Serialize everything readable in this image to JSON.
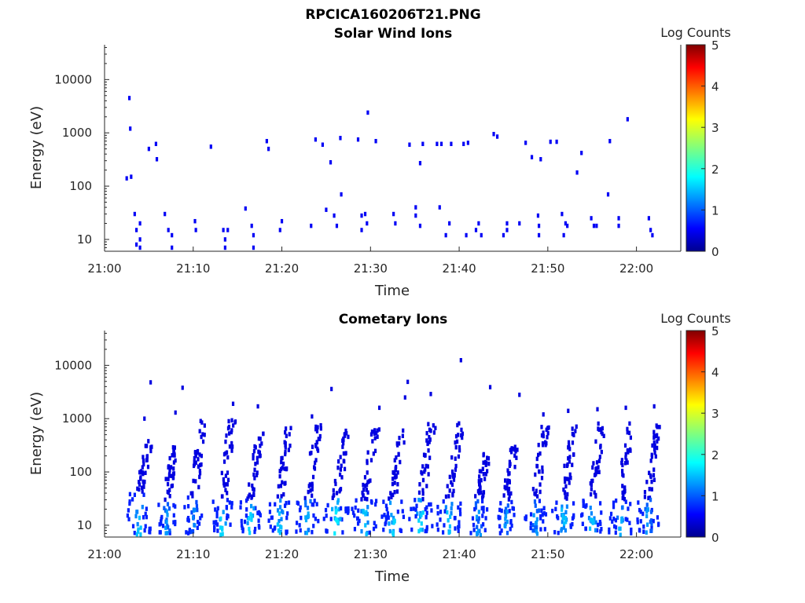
{
  "figure_title": "RPCICA160206T21.PNG",
  "chart_data": [
    {
      "type": "heatmap",
      "title": "Solar Wind Ions",
      "xlabel": "Time",
      "ylabel": "Energy (eV)",
      "y_scale": "log",
      "ylim": [
        6,
        45000
      ],
      "xlim": [
        "21:00",
        "22:05"
      ],
      "x_ticks": [
        "21:00",
        "21:10",
        "21:20",
        "21:30",
        "21:40",
        "21:50",
        "22:00"
      ],
      "y_ticks": [
        "10",
        "100",
        "1000",
        "10000"
      ],
      "colorbar": {
        "label": "Log Counts",
        "min": 0,
        "max": 5,
        "ticks": [
          "0",
          "1",
          "2",
          "3",
          "4",
          "5"
        ]
      },
      "cells": [
        {
          "t": 2.5,
          "e": 140,
          "v": 0.5
        },
        {
          "t": 2.8,
          "e": 4500,
          "v": 0.5
        },
        {
          "t": 2.9,
          "e": 1200,
          "v": 0.5
        },
        {
          "t": 3.0,
          "e": 150,
          "v": 0.5
        },
        {
          "t": 3.4,
          "e": 30,
          "v": 0.5
        },
        {
          "t": 3.6,
          "e": 15,
          "v": 0.5
        },
        {
          "t": 3.6,
          "e": 8,
          "v": 0.5
        },
        {
          "t": 4.0,
          "e": 20,
          "v": 0.5
        },
        {
          "t": 4.0,
          "e": 10,
          "v": 0.5
        },
        {
          "t": 4.0,
          "e": 7,
          "v": 0.5
        },
        {
          "t": 5.0,
          "e": 500,
          "v": 0.5
        },
        {
          "t": 5.8,
          "e": 620,
          "v": 0.5
        },
        {
          "t": 5.9,
          "e": 320,
          "v": 0.5
        },
        {
          "t": 6.8,
          "e": 30,
          "v": 0.5
        },
        {
          "t": 7.2,
          "e": 15,
          "v": 0.5
        },
        {
          "t": 7.6,
          "e": 12,
          "v": 0.5
        },
        {
          "t": 7.6,
          "e": 7,
          "v": 0.5
        },
        {
          "t": 10.2,
          "e": 22,
          "v": 0.5
        },
        {
          "t": 10.3,
          "e": 15,
          "v": 0.5
        },
        {
          "t": 12.0,
          "e": 550,
          "v": 0.5
        },
        {
          "t": 13.4,
          "e": 15,
          "v": 0.5
        },
        {
          "t": 13.6,
          "e": 10,
          "v": 0.5
        },
        {
          "t": 13.6,
          "e": 7,
          "v": 0.5
        },
        {
          "t": 13.9,
          "e": 15,
          "v": 0.5
        },
        {
          "t": 15.9,
          "e": 38,
          "v": 0.5
        },
        {
          "t": 16.6,
          "e": 18,
          "v": 0.5
        },
        {
          "t": 16.8,
          "e": 12,
          "v": 0.5
        },
        {
          "t": 16.8,
          "e": 7,
          "v": 0.5
        },
        {
          "t": 18.3,
          "e": 700,
          "v": 0.5
        },
        {
          "t": 18.5,
          "e": 500,
          "v": 0.5
        },
        {
          "t": 19.8,
          "e": 15,
          "v": 0.5
        },
        {
          "t": 20.0,
          "e": 22,
          "v": 0.5
        },
        {
          "t": 23.3,
          "e": 18,
          "v": 0.5
        },
        {
          "t": 23.8,
          "e": 750,
          "v": 0.5
        },
        {
          "t": 24.6,
          "e": 600,
          "v": 0.5
        },
        {
          "t": 25.0,
          "e": 36,
          "v": 0.5
        },
        {
          "t": 25.5,
          "e": 280,
          "v": 0.5
        },
        {
          "t": 25.9,
          "e": 28,
          "v": 0.5
        },
        {
          "t": 26.2,
          "e": 18,
          "v": 0.5
        },
        {
          "t": 26.6,
          "e": 800,
          "v": 0.5
        },
        {
          "t": 26.7,
          "e": 70,
          "v": 0.5
        },
        {
          "t": 28.6,
          "e": 750,
          "v": 0.5
        },
        {
          "t": 29.0,
          "e": 28,
          "v": 0.5
        },
        {
          "t": 29.0,
          "e": 15,
          "v": 0.5
        },
        {
          "t": 29.4,
          "e": 30,
          "v": 0.5
        },
        {
          "t": 29.6,
          "e": 20,
          "v": 0.5
        },
        {
          "t": 29.7,
          "e": 2400,
          "v": 0.5
        },
        {
          "t": 30.6,
          "e": 700,
          "v": 0.5
        },
        {
          "t": 32.6,
          "e": 30,
          "v": 0.5
        },
        {
          "t": 32.8,
          "e": 20,
          "v": 0.5
        },
        {
          "t": 34.4,
          "e": 600,
          "v": 0.5
        },
        {
          "t": 35.1,
          "e": 40,
          "v": 0.5
        },
        {
          "t": 35.1,
          "e": 28,
          "v": 0.5
        },
        {
          "t": 35.6,
          "e": 18,
          "v": 0.5
        },
        {
          "t": 35.6,
          "e": 270,
          "v": 0.5
        },
        {
          "t": 35.9,
          "e": 620,
          "v": 0.5
        },
        {
          "t": 37.8,
          "e": 40,
          "v": 0.5
        },
        {
          "t": 37.5,
          "e": 620,
          "v": 0.5
        },
        {
          "t": 38.0,
          "e": 620,
          "v": 0.5
        },
        {
          "t": 38.5,
          "e": 12,
          "v": 0.5
        },
        {
          "t": 38.9,
          "e": 20,
          "v": 0.5
        },
        {
          "t": 39.1,
          "e": 620,
          "v": 0.5
        },
        {
          "t": 40.5,
          "e": 620,
          "v": 0.5
        },
        {
          "t": 40.8,
          "e": 12,
          "v": 0.5
        },
        {
          "t": 41.0,
          "e": 650,
          "v": 0.5
        },
        {
          "t": 41.9,
          "e": 15,
          "v": 0.5
        },
        {
          "t": 42.2,
          "e": 20,
          "v": 0.5
        },
        {
          "t": 42.5,
          "e": 12,
          "v": 0.5
        },
        {
          "t": 43.9,
          "e": 950,
          "v": 0.5
        },
        {
          "t": 44.3,
          "e": 850,
          "v": 0.5
        },
        {
          "t": 45.0,
          "e": 12,
          "v": 0.5
        },
        {
          "t": 45.4,
          "e": 15,
          "v": 0.5
        },
        {
          "t": 45.4,
          "e": 20,
          "v": 0.5
        },
        {
          "t": 46.8,
          "e": 20,
          "v": 0.5
        },
        {
          "t": 47.5,
          "e": 650,
          "v": 0.5
        },
        {
          "t": 48.2,
          "e": 350,
          "v": 0.5
        },
        {
          "t": 48.9,
          "e": 28,
          "v": 0.5
        },
        {
          "t": 49.0,
          "e": 18,
          "v": 0.5
        },
        {
          "t": 49.0,
          "e": 12,
          "v": 0.5
        },
        {
          "t": 49.2,
          "e": 320,
          "v": 0.5
        },
        {
          "t": 50.3,
          "e": 680,
          "v": 0.5
        },
        {
          "t": 51.0,
          "e": 680,
          "v": 0.5
        },
        {
          "t": 51.6,
          "e": 30,
          "v": 0.5
        },
        {
          "t": 51.8,
          "e": 12,
          "v": 0.5
        },
        {
          "t": 52.0,
          "e": 20,
          "v": 0.5
        },
        {
          "t": 52.2,
          "e": 18,
          "v": 0.5
        },
        {
          "t": 53.3,
          "e": 180,
          "v": 0.5
        },
        {
          "t": 53.8,
          "e": 420,
          "v": 0.5
        },
        {
          "t": 54.9,
          "e": 25,
          "v": 0.5
        },
        {
          "t": 55.2,
          "e": 18,
          "v": 0.5
        },
        {
          "t": 55.5,
          "e": 18,
          "v": 0.5
        },
        {
          "t": 56.8,
          "e": 70,
          "v": 0.5
        },
        {
          "t": 57.0,
          "e": 700,
          "v": 0.5
        },
        {
          "t": 58.0,
          "e": 25,
          "v": 0.5
        },
        {
          "t": 58.0,
          "e": 18,
          "v": 0.5
        },
        {
          "t": 59.0,
          "e": 1800,
          "v": 0.5
        },
        {
          "t": 61.4,
          "e": 25,
          "v": 0.5
        },
        {
          "t": 61.6,
          "e": 15,
          "v": 0.5
        },
        {
          "t": 61.8,
          "e": 12,
          "v": 0.5
        }
      ]
    },
    {
      "type": "heatmap",
      "title": "Cometary Ions",
      "xlabel": "Time",
      "ylabel": "Energy (eV)",
      "y_scale": "log",
      "ylim": [
        6,
        45000
      ],
      "xlim": [
        "21:00",
        "22:05"
      ],
      "x_ticks": [
        "21:00",
        "21:10",
        "21:20",
        "21:30",
        "21:40",
        "21:50",
        "22:00"
      ],
      "y_ticks": [
        "10",
        "100",
        "1000",
        "10000"
      ],
      "colorbar": {
        "label": "Log Counts",
        "min": 0,
        "max": 5,
        "ticks": [
          "0",
          "1",
          "2",
          "3",
          "4",
          "5"
        ]
      },
      "bursts": [
        {
          "t": 3.9,
          "top": 380,
          "low_top": 40,
          "core": 1.2,
          "width": 1.3
        },
        {
          "t": 7.0,
          "top": 300,
          "low_top": 30,
          "core": 1.0,
          "width": 1.0
        },
        {
          "t": 10.1,
          "top": 1000,
          "low_top": 35,
          "core": 0.9,
          "width": 1.1
        },
        {
          "t": 13.3,
          "top": 1000,
          "low_top": 30,
          "core": 1.3,
          "width": 1.2
        },
        {
          "t": 16.5,
          "top": 650,
          "low_top": 30,
          "core": 1.3,
          "width": 1.2
        },
        {
          "t": 19.7,
          "top": 700,
          "low_top": 30,
          "core": 1.2,
          "width": 1.2
        },
        {
          "t": 22.9,
          "top": 800,
          "low_top": 30,
          "core": 1.1,
          "width": 1.3
        },
        {
          "t": 26.1,
          "top": 650,
          "low_top": 30,
          "core": 1.4,
          "width": 1.5
        },
        {
          "t": 29.3,
          "top": 650,
          "low_top": 30,
          "core": 1.2,
          "width": 1.4
        },
        {
          "t": 32.5,
          "top": 750,
          "low_top": 30,
          "core": 1.3,
          "width": 1.3
        },
        {
          "t": 35.7,
          "top": 800,
          "low_top": 30,
          "core": 1.3,
          "width": 1.4
        },
        {
          "t": 38.9,
          "top": 900,
          "low_top": 30,
          "core": 1.2,
          "width": 1.4
        },
        {
          "t": 42.2,
          "top": 220,
          "low_top": 30,
          "core": 1.0,
          "width": 1.0
        },
        {
          "t": 45.3,
          "top": 300,
          "low_top": 30,
          "core": 1.0,
          "width": 1.0
        },
        {
          "t": 48.6,
          "top": 700,
          "low_top": 30,
          "core": 1.0,
          "width": 1.2
        },
        {
          "t": 51.8,
          "top": 800,
          "low_top": 30,
          "core": 1.2,
          "width": 1.3
        },
        {
          "t": 55.0,
          "top": 900,
          "low_top": 30,
          "core": 1.2,
          "width": 1.3
        },
        {
          "t": 58.2,
          "top": 900,
          "low_top": 30,
          "core": 1.1,
          "width": 1.3
        },
        {
          "t": 61.3,
          "top": 800,
          "low_top": 30,
          "core": 1.0,
          "width": 1.2
        }
      ],
      "scatter": [
        {
          "t": 4.5,
          "e": 1000
        },
        {
          "t": 5.2,
          "e": 4800
        },
        {
          "t": 8.0,
          "e": 1300
        },
        {
          "t": 8.8,
          "e": 3800
        },
        {
          "t": 14.5,
          "e": 1900
        },
        {
          "t": 17.3,
          "e": 1700
        },
        {
          "t": 23.4,
          "e": 1100
        },
        {
          "t": 25.6,
          "e": 3600
        },
        {
          "t": 31.0,
          "e": 1600
        },
        {
          "t": 33.9,
          "e": 2500
        },
        {
          "t": 34.2,
          "e": 4900
        },
        {
          "t": 36.8,
          "e": 2900
        },
        {
          "t": 40.2,
          "e": 12500
        },
        {
          "t": 43.5,
          "e": 3900
        },
        {
          "t": 46.8,
          "e": 2800
        },
        {
          "t": 49.5,
          "e": 1200
        },
        {
          "t": 52.3,
          "e": 1400
        },
        {
          "t": 55.6,
          "e": 1500
        },
        {
          "t": 58.8,
          "e": 1600
        },
        {
          "t": 62.0,
          "e": 1700
        }
      ]
    }
  ]
}
